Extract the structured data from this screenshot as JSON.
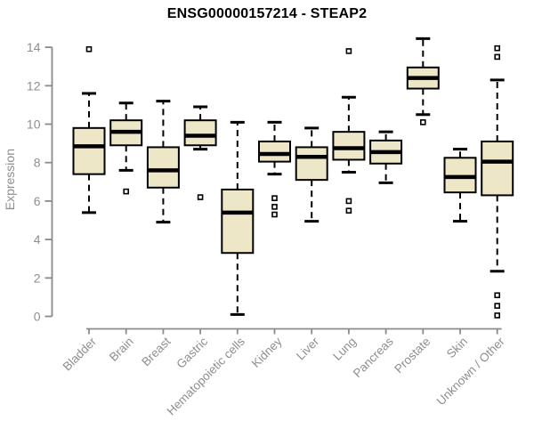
{
  "chart_data": {
    "type": "boxplot",
    "title": "ENSG00000157214 - STEAP2",
    "ylabel": "Expression",
    "xlabel": "",
    "ylim": [
      0,
      14
    ],
    "yticks": [
      0,
      2,
      4,
      6,
      8,
      10,
      12,
      14
    ],
    "grid": false,
    "legend": false,
    "colors": {
      "box_fill": "#EDE7C8",
      "box_line": "#000000",
      "axis": "#8b8b8b",
      "tick_text": "#8e8e8e",
      "title_text": "#000000",
      "background": "#ffffff"
    },
    "categories": [
      "Bladder",
      "Brain",
      "Breast",
      "Gastric",
      "Hematopoietic cells",
      "Kidney",
      "Liver",
      "Lung",
      "Pancreas",
      "Prostate",
      "Skin",
      "Unknown / Other"
    ],
    "boxes": [
      {
        "category": "Bladder",
        "whisker_low": 5.4,
        "q1": 7.4,
        "median": 8.85,
        "q3": 9.8,
        "whisker_high": 11.6,
        "outliers": [
          13.9
        ]
      },
      {
        "category": "Brain",
        "whisker_low": 7.6,
        "q1": 8.9,
        "median": 9.6,
        "q3": 10.2,
        "whisker_high": 11.1,
        "outliers": [
          6.5
        ]
      },
      {
        "category": "Breast",
        "whisker_low": 4.9,
        "q1": 6.7,
        "median": 7.6,
        "q3": 8.8,
        "whisker_high": 11.2,
        "outliers": []
      },
      {
        "category": "Gastric",
        "whisker_low": 8.7,
        "q1": 8.9,
        "median": 9.4,
        "q3": 10.2,
        "whisker_high": 10.9,
        "outliers": [
          6.2
        ]
      },
      {
        "category": "Hematopoietic cells",
        "whisker_low": 0.1,
        "q1": 3.3,
        "median": 5.4,
        "q3": 6.6,
        "whisker_high": 10.1,
        "outliers": []
      },
      {
        "category": "Kidney",
        "whisker_low": 7.4,
        "q1": 8.05,
        "median": 8.45,
        "q3": 9.1,
        "whisker_high": 10.1,
        "outliers": [
          6.15,
          5.7,
          5.3
        ]
      },
      {
        "category": "Liver",
        "whisker_low": 4.95,
        "q1": 7.1,
        "median": 8.3,
        "q3": 8.8,
        "whisker_high": 9.8,
        "outliers": []
      },
      {
        "category": "Lung",
        "whisker_low": 7.5,
        "q1": 8.15,
        "median": 8.75,
        "q3": 9.6,
        "whisker_high": 11.4,
        "outliers": [
          13.8,
          6.0,
          5.5
        ]
      },
      {
        "category": "Pancreas",
        "whisker_low": 6.95,
        "q1": 7.95,
        "median": 8.55,
        "q3": 9.15,
        "whisker_high": 9.6,
        "outliers": []
      },
      {
        "category": "Prostate",
        "whisker_low": 10.5,
        "q1": 11.85,
        "median": 12.4,
        "q3": 12.95,
        "whisker_high": 14.45,
        "outliers": [
          10.1
        ]
      },
      {
        "category": "Skin",
        "whisker_low": 4.95,
        "q1": 6.45,
        "median": 7.25,
        "q3": 8.25,
        "whisker_high": 8.7,
        "outliers": []
      },
      {
        "category": "Unknown / Other",
        "whisker_low": 2.35,
        "q1": 6.3,
        "median": 8.05,
        "q3": 9.1,
        "whisker_high": 12.3,
        "outliers": [
          13.95,
          13.5,
          1.1,
          0.55,
          0.05
        ]
      }
    ]
  }
}
